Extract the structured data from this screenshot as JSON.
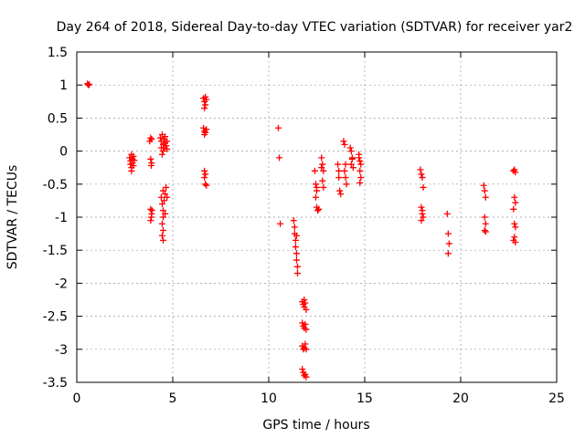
{
  "chart_data": {
    "type": "scatter",
    "title": "Day 264 of 2018, Sidereal Day-to-day VTEC variation (SDTVAR) for receiver yar2",
    "xlabel": "GPS time / hours",
    "ylabel": "SDTVAR / TECUs",
    "xlim": [
      0,
      25
    ],
    "ylim": [
      -3.5,
      1.5
    ],
    "xticks": [
      0,
      5,
      10,
      15,
      20,
      25
    ],
    "xtick_labels": [
      "0",
      "5",
      "10",
      "15",
      "20",
      "25"
    ],
    "yticks": [
      -3.5,
      -3,
      -2.5,
      -2,
      -1.5,
      -1,
      -0.5,
      0,
      0.5,
      1,
      1.5
    ],
    "ytick_labels": [
      "-3.5",
      "-3",
      "-2.5",
      "-2",
      "-1.5",
      "-1",
      "-0.5",
      "0",
      "0.5",
      "1",
      "1.5"
    ],
    "grid": true,
    "marker": "+",
    "color": "#ff0000",
    "series": [
      {
        "name": "SDTVAR",
        "points": [
          [
            0.55,
            1.02
          ],
          [
            0.6,
            1.0
          ],
          [
            0.65,
            1.01
          ],
          [
            2.75,
            -0.1
          ],
          [
            2.8,
            -0.15
          ],
          [
            2.8,
            -0.2
          ],
          [
            2.85,
            -0.25
          ],
          [
            2.85,
            -0.3
          ],
          [
            2.9,
            -0.12
          ],
          [
            2.9,
            -0.18
          ],
          [
            2.95,
            -0.08
          ],
          [
            2.95,
            -0.22
          ],
          [
            3.0,
            -0.14
          ],
          [
            2.85,
            -0.05
          ],
          [
            3.8,
            0.15
          ],
          [
            3.85,
            0.2
          ],
          [
            3.9,
            0.18
          ],
          [
            3.85,
            -0.12
          ],
          [
            3.9,
            -0.18
          ],
          [
            3.88,
            -0.22
          ],
          [
            3.85,
            -0.88
          ],
          [
            3.9,
            -0.95
          ],
          [
            3.88,
            -1.0
          ],
          [
            3.85,
            -1.05
          ],
          [
            3.92,
            -0.9
          ],
          [
            4.35,
            0.2
          ],
          [
            4.4,
            0.15
          ],
          [
            4.4,
            0.05
          ],
          [
            4.45,
            0.25
          ],
          [
            4.45,
            -0.05
          ],
          [
            4.5,
            0.1
          ],
          [
            4.5,
            0.0
          ],
          [
            4.55,
            0.18
          ],
          [
            4.55,
            0.05
          ],
          [
            4.6,
            0.22
          ],
          [
            4.6,
            0.12
          ],
          [
            4.65,
            0.08
          ],
          [
            4.7,
            0.15
          ],
          [
            4.7,
            0.03
          ],
          [
            4.4,
            -0.7
          ],
          [
            4.45,
            -0.8
          ],
          [
            4.5,
            -0.9
          ],
          [
            4.5,
            -0.6
          ],
          [
            4.55,
            -0.75
          ],
          [
            4.6,
            -0.95
          ],
          [
            4.6,
            -0.65
          ],
          [
            4.65,
            -0.55
          ],
          [
            4.7,
            -0.7
          ],
          [
            4.5,
            -1.0
          ],
          [
            4.45,
            -1.1
          ],
          [
            4.5,
            -1.2
          ],
          [
            4.45,
            -1.28
          ],
          [
            4.5,
            -1.35
          ],
          [
            6.6,
            0.8
          ],
          [
            6.65,
            0.75
          ],
          [
            6.7,
            0.7
          ],
          [
            6.65,
            0.65
          ],
          [
            6.75,
            0.78
          ],
          [
            6.7,
            0.82
          ],
          [
            6.6,
            0.35
          ],
          [
            6.65,
            0.3
          ],
          [
            6.7,
            0.28
          ],
          [
            6.75,
            0.33
          ],
          [
            6.65,
            0.25
          ],
          [
            6.65,
            -0.3
          ],
          [
            6.7,
            -0.35
          ],
          [
            6.65,
            -0.4
          ],
          [
            6.7,
            -0.5
          ],
          [
            6.75,
            -0.52
          ],
          [
            10.5,
            0.35
          ],
          [
            10.55,
            -0.1
          ],
          [
            10.6,
            -1.1
          ],
          [
            11.3,
            -1.05
          ],
          [
            11.35,
            -1.15
          ],
          [
            11.35,
            -1.25
          ],
          [
            11.4,
            -1.35
          ],
          [
            11.4,
            -1.45
          ],
          [
            11.45,
            -1.55
          ],
          [
            11.45,
            -1.65
          ],
          [
            11.5,
            -1.75
          ],
          [
            11.5,
            -1.85
          ],
          [
            11.45,
            -1.28
          ],
          [
            11.75,
            -2.28
          ],
          [
            11.8,
            -2.32
          ],
          [
            11.85,
            -2.36
          ],
          [
            11.9,
            -2.3
          ],
          [
            11.95,
            -2.4
          ],
          [
            11.85,
            -2.25
          ],
          [
            11.75,
            -2.6
          ],
          [
            11.8,
            -2.65
          ],
          [
            11.85,
            -2.68
          ],
          [
            11.9,
            -2.62
          ],
          [
            11.95,
            -2.7
          ],
          [
            11.75,
            -2.95
          ],
          [
            11.8,
            -3.0
          ],
          [
            11.85,
            -2.98
          ],
          [
            11.9,
            -2.92
          ],
          [
            11.95,
            -3.0
          ],
          [
            11.75,
            -3.3
          ],
          [
            11.8,
            -3.35
          ],
          [
            11.85,
            -3.4
          ],
          [
            11.9,
            -3.38
          ],
          [
            11.95,
            -3.42
          ],
          [
            12.4,
            -0.3
          ],
          [
            12.45,
            -0.5
          ],
          [
            12.5,
            -0.6
          ],
          [
            12.45,
            -0.7
          ],
          [
            12.5,
            -0.85
          ],
          [
            12.55,
            -0.9
          ],
          [
            12.6,
            -0.88
          ],
          [
            12.5,
            -0.55
          ],
          [
            12.75,
            -0.1
          ],
          [
            12.8,
            -0.2
          ],
          [
            12.85,
            -0.3
          ],
          [
            12.8,
            -0.45
          ],
          [
            12.85,
            -0.55
          ],
          [
            12.75,
            -0.25
          ],
          [
            13.6,
            -0.2
          ],
          [
            13.65,
            -0.3
          ],
          [
            13.7,
            -0.6
          ],
          [
            13.75,
            -0.65
          ],
          [
            13.65,
            -0.4
          ],
          [
            13.9,
            0.15
          ],
          [
            13.95,
            0.1
          ],
          [
            14.0,
            -0.2
          ],
          [
            14.0,
            -0.4
          ],
          [
            14.05,
            -0.5
          ],
          [
            13.95,
            -0.3
          ],
          [
            14.25,
            0.05
          ],
          [
            14.3,
            0.0
          ],
          [
            14.35,
            -0.1
          ],
          [
            14.3,
            -0.2
          ],
          [
            14.4,
            -0.25
          ],
          [
            14.35,
            -0.12
          ],
          [
            14.7,
            -0.1
          ],
          [
            14.75,
            -0.15
          ],
          [
            14.8,
            -0.2
          ],
          [
            14.75,
            -0.3
          ],
          [
            14.8,
            -0.4
          ],
          [
            14.75,
            -0.48
          ],
          [
            14.7,
            -0.05
          ],
          [
            17.9,
            -0.28
          ],
          [
            17.95,
            -0.35
          ],
          [
            18.0,
            -0.4
          ],
          [
            18.05,
            -0.55
          ],
          [
            17.95,
            -0.85
          ],
          [
            18.0,
            -0.9
          ],
          [
            18.05,
            -1.0
          ],
          [
            17.95,
            -1.05
          ],
          [
            18.0,
            -0.95
          ],
          [
            19.3,
            -0.95
          ],
          [
            19.35,
            -1.25
          ],
          [
            19.4,
            -1.4
          ],
          [
            19.35,
            -1.55
          ],
          [
            21.2,
            -0.52
          ],
          [
            21.25,
            -0.6
          ],
          [
            21.3,
            -0.7
          ],
          [
            21.25,
            -1.0
          ],
          [
            21.3,
            -1.1
          ],
          [
            21.25,
            -1.2
          ],
          [
            21.3,
            -1.22
          ],
          [
            22.75,
            -0.3
          ],
          [
            22.8,
            -0.28
          ],
          [
            22.85,
            -0.32
          ],
          [
            22.8,
            -0.7
          ],
          [
            22.85,
            -0.78
          ],
          [
            22.75,
            -0.88
          ],
          [
            22.8,
            -1.1
          ],
          [
            22.85,
            -1.15
          ],
          [
            22.8,
            -1.3
          ],
          [
            22.75,
            -1.35
          ],
          [
            22.85,
            -1.38
          ]
        ]
      }
    ]
  }
}
